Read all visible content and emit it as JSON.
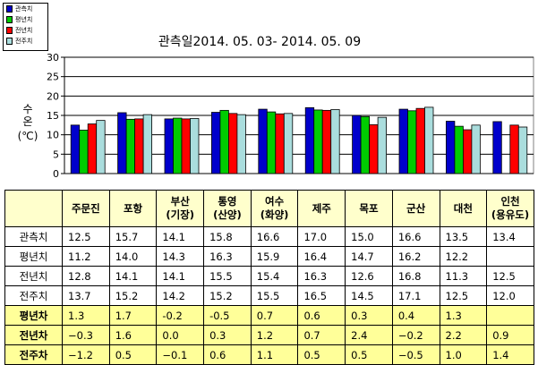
{
  "chart_data": {
    "type": "bar",
    "title": "관측일2014. 05. 03-  2014. 05. 09",
    "ylabel": "수온 (℃)",
    "ylim": [
      0,
      30
    ],
    "yticks": [
      0,
      5,
      10,
      15,
      20,
      25,
      30
    ],
    "grid": true,
    "legend_position": "top-left",
    "categories": [
      "주문진",
      "포항",
      "부산 (기장)",
      "통영 (산양)",
      "여수 (화양)",
      "제주",
      "목포",
      "군산",
      "대천",
      "인천 (용유도)"
    ],
    "series": [
      {
        "name": "관측치",
        "color": "#0000cc",
        "values": [
          12.5,
          15.7,
          14.1,
          15.8,
          16.6,
          17.0,
          15.0,
          16.6,
          13.5,
          13.4
        ]
      },
      {
        "name": "평년치",
        "color": "#00cc00",
        "values": [
          11.2,
          14.0,
          14.3,
          16.3,
          15.9,
          16.4,
          14.7,
          16.2,
          12.2,
          null
        ]
      },
      {
        "name": "전년치",
        "color": "#ff0000",
        "values": [
          12.8,
          14.1,
          14.1,
          15.5,
          15.4,
          16.3,
          12.6,
          16.8,
          11.3,
          12.5
        ]
      },
      {
        "name": "전주치",
        "color": "#aadddd",
        "values": [
          13.7,
          15.2,
          14.2,
          15.2,
          15.5,
          16.5,
          14.5,
          17.1,
          12.5,
          12.0
        ]
      }
    ]
  },
  "table": {
    "header_labels": [
      "주문진",
      "포항",
      "부산\n(기장)",
      "통영\n(산양)",
      "여수\n(화양)",
      "제주",
      "목포",
      "군산",
      "대천",
      "인천\n(용유도)"
    ],
    "rows": [
      {
        "label": "관측치",
        "diff": false,
        "values": [
          "12.5",
          "15.7",
          "14.1",
          "15.8",
          "16.6",
          "17.0",
          "15.0",
          "16.6",
          "13.5",
          "13.4"
        ]
      },
      {
        "label": "평년치",
        "diff": false,
        "values": [
          "11.2",
          "14.0",
          "14.3",
          "16.3",
          "15.9",
          "16.4",
          "14.7",
          "16.2",
          "12.2",
          ""
        ]
      },
      {
        "label": "전년치",
        "diff": false,
        "values": [
          "12.8",
          "14.1",
          "14.1",
          "15.5",
          "15.4",
          "16.3",
          "12.6",
          "16.8",
          "11.3",
          "12.5"
        ]
      },
      {
        "label": "전주치",
        "diff": false,
        "values": [
          "13.7",
          "15.2",
          "14.2",
          "15.2",
          "15.5",
          "16.5",
          "14.5",
          "17.1",
          "12.5",
          "12.0"
        ]
      },
      {
        "label": "평년차",
        "diff": true,
        "values": [
          "1.3",
          "1.7",
          "-0.2",
          "-0.5",
          "0.7",
          "0.6",
          "0.3",
          "0.4",
          "1.3",
          ""
        ]
      },
      {
        "label": "전년차",
        "diff": true,
        "values": [
          "−0.3",
          "1.6",
          "0.0",
          "0.3",
          "1.2",
          "0.7",
          "2.4",
          "−0.2",
          "2.2",
          "0.9"
        ]
      },
      {
        "label": "전주차",
        "diff": true,
        "values": [
          "−1.2",
          "0.5",
          "−0.1",
          "0.6",
          "1.1",
          "0.5",
          "0.5",
          "−0.5",
          "1.0",
          "1.4"
        ]
      }
    ]
  }
}
